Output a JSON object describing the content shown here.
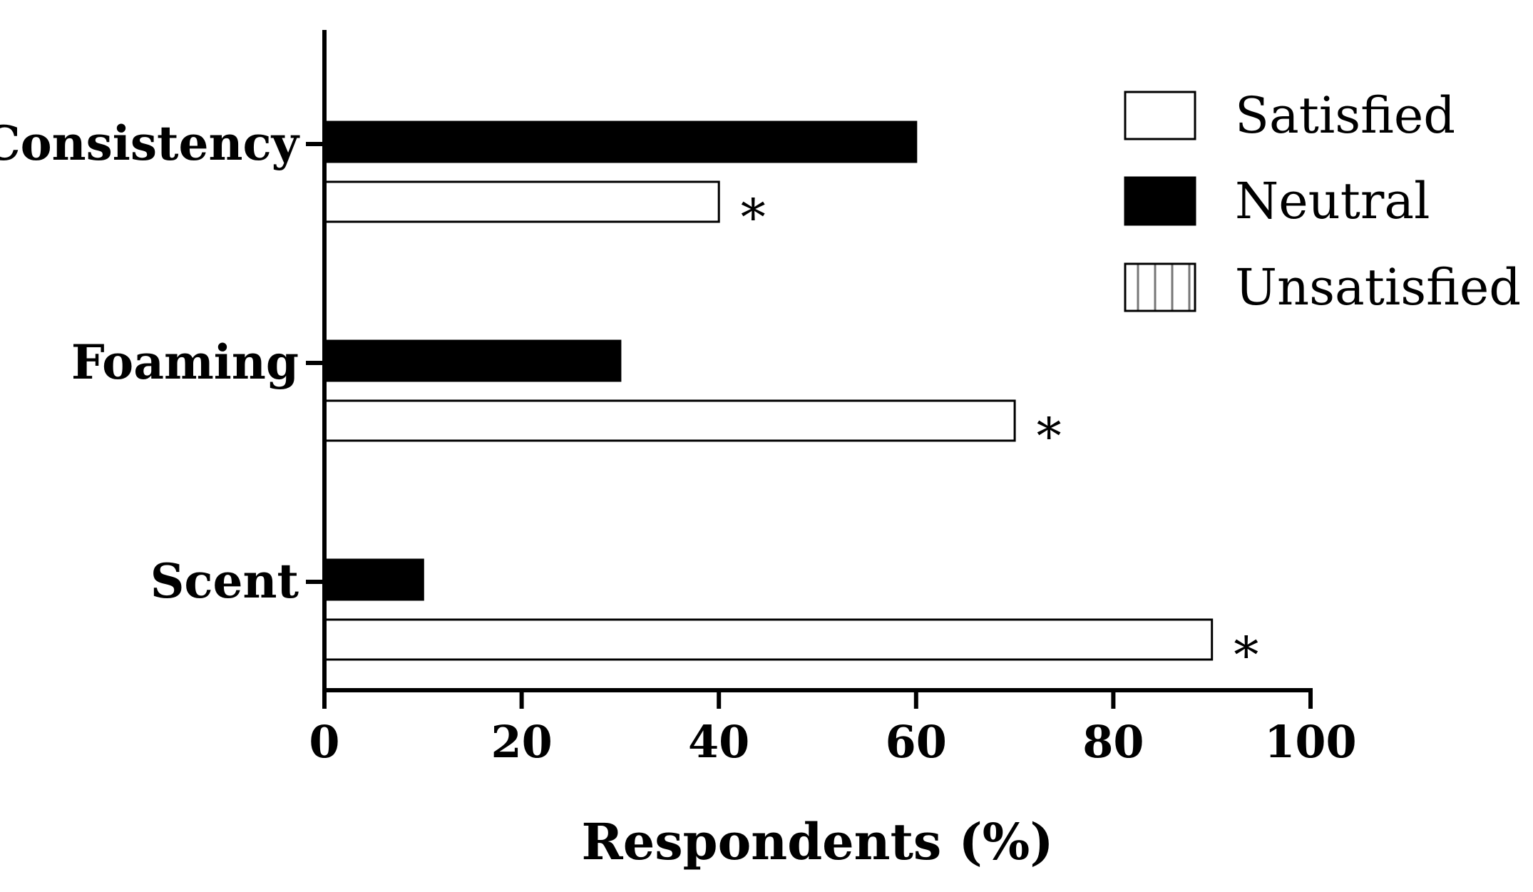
{
  "chart_data": {
    "type": "bar",
    "orientation": "horizontal",
    "categories": [
      "Consistency",
      "Foaming",
      "Scent"
    ],
    "series": [
      {
        "name": "Satisfied",
        "values": [
          40,
          70,
          90
        ],
        "color": "#ffffff",
        "pattern": "none"
      },
      {
        "name": "Neutral",
        "values": [
          60,
          30,
          10
        ],
        "color": "#000000",
        "pattern": "solid"
      },
      {
        "name": "Unsatisfied",
        "values": [
          0,
          0,
          0
        ],
        "color": "#ffffff",
        "pattern": "vertical-lines"
      }
    ],
    "annotations": [
      {
        "category": "Consistency",
        "series": "Satisfied",
        "text": "*"
      },
      {
        "category": "Foaming",
        "series": "Satisfied",
        "text": "*"
      },
      {
        "category": "Scent",
        "series": "Satisfied",
        "text": "*"
      }
    ],
    "xlabel": "Respondents (%)",
    "ylabel": "",
    "xlim": [
      0,
      100
    ],
    "xticks": [
      "0",
      "20",
      "40",
      "60",
      "80",
      "100"
    ],
    "legend": "top-right",
    "grid": false
  }
}
